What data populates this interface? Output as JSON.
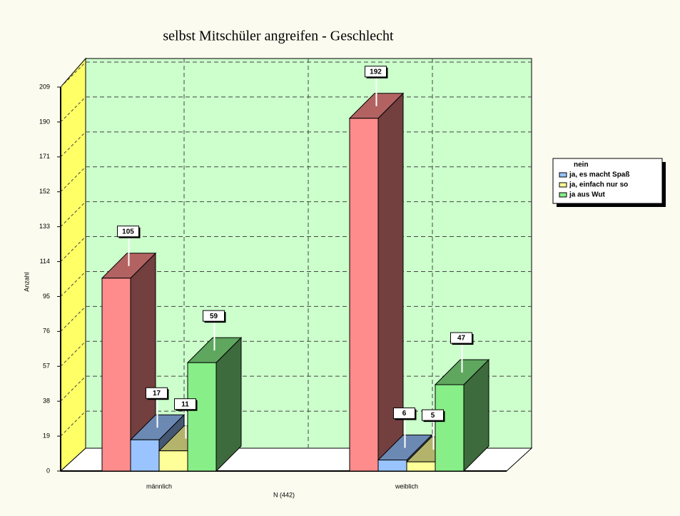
{
  "chart_data": {
    "type": "bar3d",
    "title": "selbst Mitschüler angreifen -  Geschlecht",
    "y_label": "Anzahl",
    "x_label": "N (442)",
    "categories": [
      "männlich",
      "weiblich"
    ],
    "series": [
      {
        "name": "nein",
        "color": "#ff8c8c",
        "values": [
          105,
          192
        ]
      },
      {
        "name": "ja, es macht Spaß",
        "color": "#99c4ff",
        "values": [
          17,
          6
        ]
      },
      {
        "name": "ja, einfach nur so",
        "color": "#ffff99",
        "values": [
          11,
          5
        ]
      },
      {
        "name": "ja aus Wut",
        "color": "#88ee88",
        "values": [
          59,
          47
        ]
      }
    ],
    "ylim": [
      0,
      209
    ],
    "yticks": [
      0,
      19,
      38,
      57,
      76,
      95,
      114,
      133,
      152,
      171,
      190,
      209
    ],
    "grid": true
  }
}
